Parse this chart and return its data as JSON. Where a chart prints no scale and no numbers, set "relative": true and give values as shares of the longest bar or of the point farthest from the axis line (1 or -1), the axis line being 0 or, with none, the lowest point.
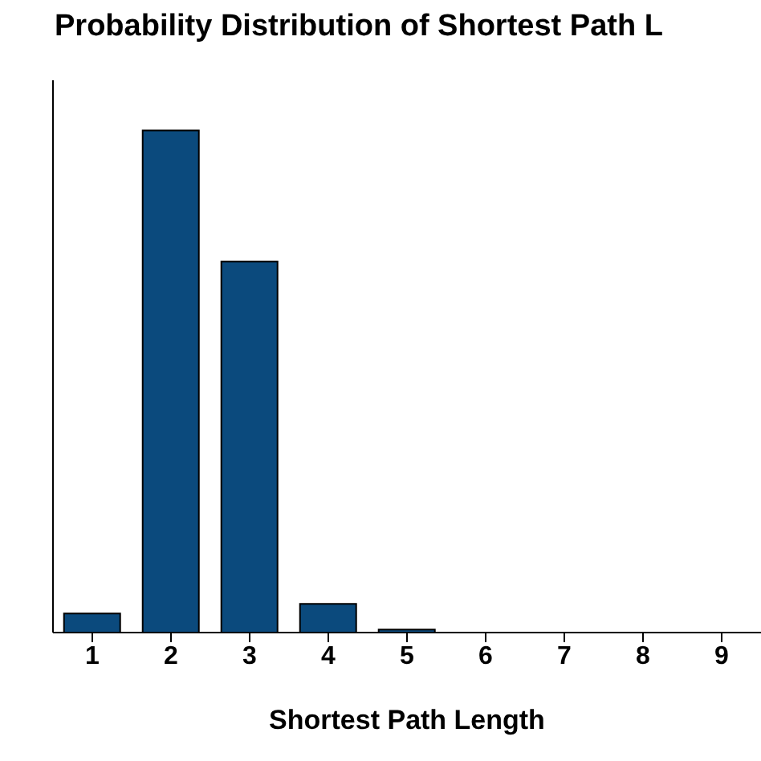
{
  "chart_data": {
    "type": "bar",
    "title": "Probability Distribution of Shortest Path L",
    "xlabel": "Shortest Path Length",
    "categories": [
      "1",
      "2",
      "3",
      "4",
      "5",
      "6",
      "7",
      "8",
      "9"
    ],
    "values": [
      0.038,
      1,
      0.739,
      0.057,
      0.006,
      0,
      0,
      0,
      0
    ],
    "color": "#0b4a7d",
    "relative": true,
    "grid": false,
    "legend": false
  }
}
